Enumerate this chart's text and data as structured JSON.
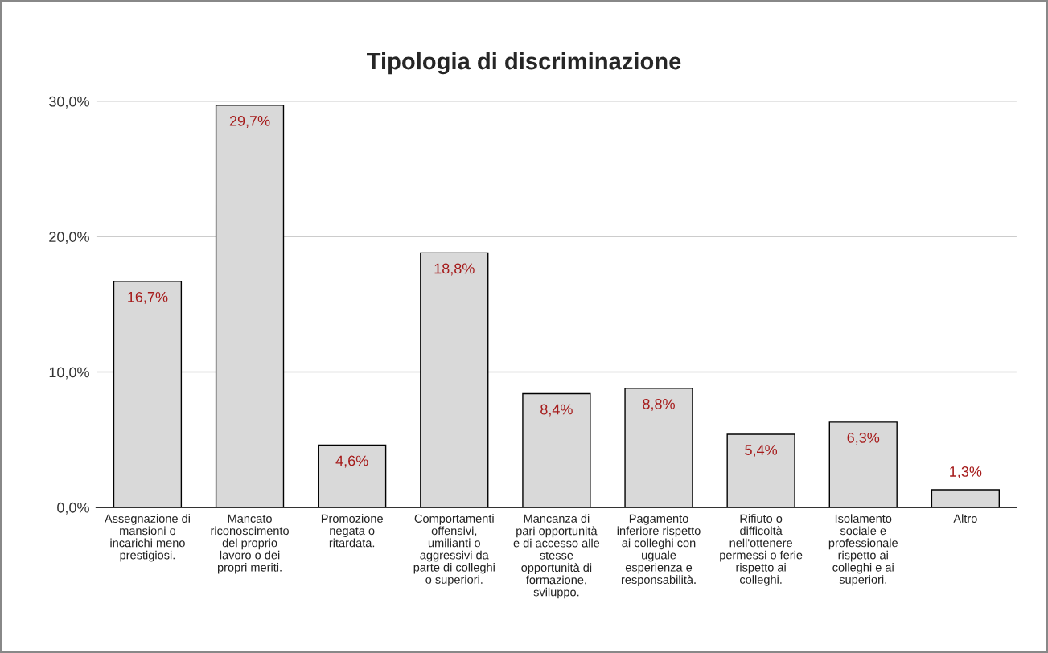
{
  "chart_data": {
    "type": "bar",
    "title": "Tipologia di discriminazione",
    "categories": [
      "Assegnazione di\nmansioni o\nincarichi meno\nprestigiosi.",
      "Mancato\nriconoscimento\ndel proprio\nlavoro o dei\npropri meriti.",
      "Promozione\nnegata o\nritardata.",
      "Comportamenti\noffensivi,\numilianti o\naggressivi da\nparte di colleghi\no superiori.",
      "Mancanza di\npari opportunità\ne di accesso alle\nstesse\nopportunità di\nformazione,\nsviluppo.",
      "Pagamento\ninferiore rispetto\nai colleghi con\nuguale\nesperienza e\nresponsabilità.",
      "Rifiuto o\ndifficoltà\nnell'ottenere\npermessi o ferie\nrispetto ai\ncolleghi.",
      "Isolamento\nsociale e\nprofessionale\nrispetto ai\ncolleghi e ai\nsuperiori.",
      "Altro"
    ],
    "values": [
      16.7,
      29.7,
      4.6,
      18.8,
      8.4,
      8.8,
      5.4,
      6.3,
      1.3
    ],
    "value_labels": [
      "16,7%",
      "29,7%",
      "4,6%",
      "18,8%",
      "8,4%",
      "8,8%",
      "5,4%",
      "6,3%",
      "1,3%"
    ],
    "color": "#d9d9d9",
    "ylim": [
      0,
      30
    ],
    "yticks": [
      {
        "value": 0,
        "label": "0,0%"
      },
      {
        "value": 10,
        "label": "10,0%"
      },
      {
        "value": 20,
        "label": "20,0%"
      },
      {
        "value": 30,
        "label": "30,0%"
      }
    ],
    "grid": "y",
    "legend": false
  }
}
